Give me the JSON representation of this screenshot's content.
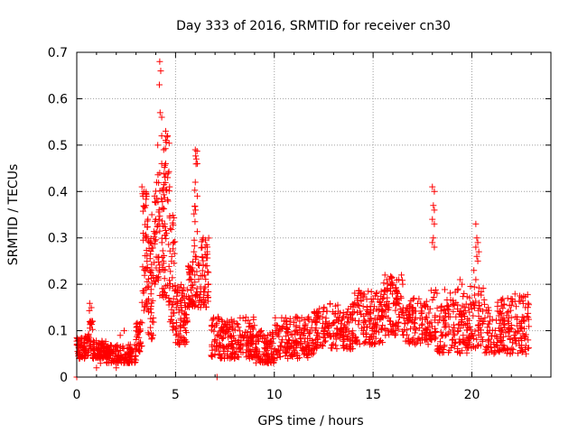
{
  "chart_data": {
    "type": "scatter",
    "title": "Day 333 of 2016, SRMTID for receiver cn30",
    "xlabel": "GPS time / hours",
    "ylabel": "SRMTID / TECUs",
    "xlim": [
      0,
      24
    ],
    "ylim": [
      0,
      0.7
    ],
    "xticks": [
      0,
      5,
      10,
      15,
      20
    ],
    "yticks": [
      0,
      0.1,
      0.2,
      0.3,
      0.4,
      0.5,
      0.6,
      0.7
    ],
    "xtick_labels": [
      "0",
      "5",
      "10",
      "15",
      "20"
    ],
    "ytick_labels": [
      "0",
      "0.1",
      "0.2",
      "0.3",
      "0.4",
      "0.5",
      "0.6",
      "0.7"
    ],
    "grid": true,
    "marker": "+",
    "colors": {
      "series": "#ff0000",
      "grid": "#a0a0a0",
      "axis": "#000000"
    },
    "series": [
      {
        "name": "SRMTID",
        "seed": 333,
        "note_points": "Approximate envelope of ~2000 plotted points",
        "segments": [
          {
            "x": [
              0.0,
              0.6
            ],
            "y": [
              0.04,
              0.09
            ],
            "n": 70
          },
          {
            "x": [
              0.6,
              0.8
            ],
            "y": [
              0.06,
              0.16
            ],
            "n": 25
          },
          {
            "x": [
              0.8,
              1.5
            ],
            "y": [
              0.04,
              0.08
            ],
            "n": 80
          },
          {
            "x": [
              1.5,
              3.0
            ],
            "y": [
              0.03,
              0.07
            ],
            "n": 140
          },
          {
            "x": [
              3.0,
              3.3
            ],
            "y": [
              0.05,
              0.12
            ],
            "n": 35
          },
          {
            "x": [
              3.3,
              3.6
            ],
            "y": [
              0.14,
              0.41
            ],
            "n": 45
          },
          {
            "x": [
              3.6,
              3.9
            ],
            "y": [
              0.08,
              0.3
            ],
            "n": 45
          },
          {
            "x": [
              3.9,
              4.2
            ],
            "y": [
              0.2,
              0.45
            ],
            "n": 40
          },
          {
            "x": [
              4.2,
              4.7
            ],
            "y": [
              0.15,
              0.52
            ],
            "n": 70
          },
          {
            "x": [
              4.7,
              5.0
            ],
            "y": [
              0.1,
              0.35
            ],
            "n": 40
          },
          {
            "x": [
              5.0,
              5.6
            ],
            "y": [
              0.07,
              0.2
            ],
            "n": 80
          },
          {
            "x": [
              5.6,
              6.3
            ],
            "y": [
              0.15,
              0.25
            ],
            "n": 70
          },
          {
            "x": [
              5.9,
              6.1
            ],
            "y": [
              0.25,
              0.49
            ],
            "n": 16
          },
          {
            "x": [
              6.3,
              6.7
            ],
            "y": [
              0.15,
              0.3
            ],
            "n": 45
          },
          {
            "x": [
              6.8,
              9.0
            ],
            "y": [
              0.04,
              0.13
            ],
            "n": 220
          },
          {
            "x": [
              9.0,
              10.0
            ],
            "y": [
              0.03,
              0.1
            ],
            "n": 100
          },
          {
            "x": [
              10.0,
              12.0
            ],
            "y": [
              0.04,
              0.13
            ],
            "n": 180
          },
          {
            "x": [
              12.0,
              14.0
            ],
            "y": [
              0.06,
              0.16
            ],
            "n": 180
          },
          {
            "x": [
              14.0,
              15.5
            ],
            "y": [
              0.07,
              0.19
            ],
            "n": 140
          },
          {
            "x": [
              15.5,
              16.5
            ],
            "y": [
              0.09,
              0.22
            ],
            "n": 100
          },
          {
            "x": [
              16.5,
              17.8
            ],
            "y": [
              0.07,
              0.17
            ],
            "n": 110
          },
          {
            "x": [
              17.8,
              18.2
            ],
            "y": [
              0.08,
              0.22
            ],
            "n": 30
          },
          {
            "x": [
              18.2,
              19.8
            ],
            "y": [
              0.05,
              0.19
            ],
            "n": 140
          },
          {
            "x": [
              19.8,
              20.6
            ],
            "y": [
              0.06,
              0.2
            ],
            "n": 70
          },
          {
            "x": [
              20.6,
              22.0
            ],
            "y": [
              0.05,
              0.17
            ],
            "n": 130
          },
          {
            "x": [
              22.0,
              22.9
            ],
            "y": [
              0.05,
              0.18
            ],
            "n": 80
          }
        ],
        "points": [
          [
            4.2,
            0.68
          ],
          [
            4.25,
            0.66
          ],
          [
            4.18,
            0.63
          ],
          [
            4.22,
            0.57
          ],
          [
            4.3,
            0.56
          ],
          [
            4.5,
            0.53
          ],
          [
            4.3,
            0.52
          ],
          [
            4.6,
            0.52
          ],
          [
            4.1,
            0.5
          ],
          [
            4.4,
            0.49
          ],
          [
            4.3,
            0.46
          ],
          [
            4.5,
            0.46
          ],
          [
            4.2,
            0.44
          ],
          [
            4.6,
            0.43
          ],
          [
            4.7,
            0.41
          ],
          [
            3.3,
            0.41
          ],
          [
            3.4,
            0.4
          ],
          [
            3.35,
            0.39
          ],
          [
            3.5,
            0.37
          ],
          [
            3.8,
            0.35
          ],
          [
            3.6,
            0.34
          ],
          [
            4.0,
            0.34
          ],
          [
            4.45,
            0.33
          ],
          [
            4.55,
            0.31
          ],
          [
            6.0,
            0.49
          ],
          [
            6.05,
            0.47
          ],
          [
            6.1,
            0.46
          ],
          [
            6.0,
            0.42
          ],
          [
            6.1,
            0.39
          ],
          [
            6.4,
            0.3
          ],
          [
            6.5,
            0.28
          ],
          [
            6.6,
            0.27
          ],
          [
            18.0,
            0.41
          ],
          [
            18.1,
            0.4
          ],
          [
            18.05,
            0.37
          ],
          [
            18.1,
            0.36
          ],
          [
            18.0,
            0.34
          ],
          [
            18.1,
            0.33
          ],
          [
            18.05,
            0.3
          ],
          [
            18.0,
            0.29
          ],
          [
            18.1,
            0.28
          ],
          [
            20.2,
            0.33
          ],
          [
            20.25,
            0.3
          ],
          [
            20.3,
            0.29
          ],
          [
            20.2,
            0.28
          ],
          [
            20.35,
            0.27
          ],
          [
            20.25,
            0.26
          ],
          [
            20.3,
            0.25
          ],
          [
            20.1,
            0.23
          ],
          [
            20.2,
            0.21
          ],
          [
            19.4,
            0.21
          ],
          [
            19.5,
            0.2
          ],
          [
            19.3,
            0.19
          ],
          [
            19.6,
            0.18
          ],
          [
            15.6,
            0.22
          ],
          [
            15.7,
            0.21
          ],
          [
            16.0,
            0.2
          ],
          [
            16.3,
            0.21
          ],
          [
            16.5,
            0.2
          ],
          [
            2.4,
            0.1
          ],
          [
            2.2,
            0.09
          ],
          [
            2.0,
            0.02
          ],
          [
            1.0,
            0.02
          ],
          [
            1.2,
            0.03
          ],
          [
            0.0,
            0.0
          ],
          [
            7.1,
            0.0
          ]
        ]
      }
    ]
  }
}
